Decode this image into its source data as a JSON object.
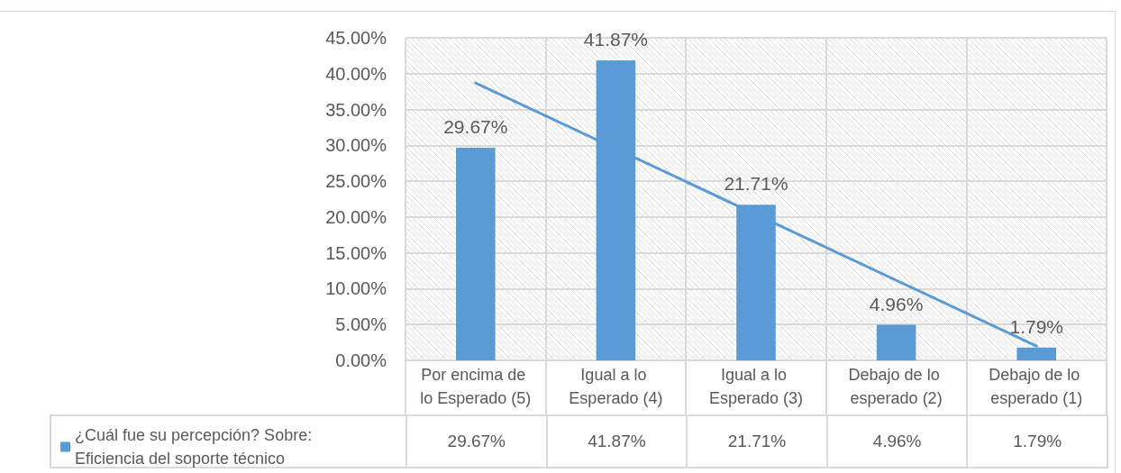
{
  "chart_data": {
    "type": "bar",
    "categories": [
      "Por encima de lo Esperado (5)",
      "Igual a lo Esperado (4)",
      "Igual a lo Esperado (3)",
      "Debajo de lo esperado (2)",
      "Debajo de lo esperado (1)"
    ],
    "series": [
      {
        "name": "¿Cuál fue su percepción? Sobre: Eficiencia del soporte técnico",
        "color": "#5b9bd5",
        "values": [
          29.67,
          41.87,
          21.71,
          4.96,
          1.79
        ],
        "value_labels": [
          "29.67%",
          "41.87%",
          "21.71%",
          "4.96%",
          "1.79%"
        ]
      },
      {
        "type": "line",
        "x": [
          "Por encima de lo Esperado (5)",
          "Debajo de lo esperado (1)"
        ],
        "values": [
          38.7,
          2.0
        ],
        "color": "#5b9bd5",
        "marker": "none"
      }
    ],
    "ylim": [
      0,
      45
    ],
    "yticks": [
      {
        "value": 0,
        "label": "0.00%"
      },
      {
        "value": 5,
        "label": "5.00%"
      },
      {
        "value": 10,
        "label": "10.00%"
      },
      {
        "value": 15,
        "label": "15.00%"
      },
      {
        "value": 20,
        "label": "20.00%"
      },
      {
        "value": 25,
        "label": "25.00%"
      },
      {
        "value": 30,
        "label": "30.00%"
      },
      {
        "value": 35,
        "label": "35.00%"
      },
      {
        "value": 40,
        "label": "40.00%"
      },
      {
        "value": 45,
        "label": "45.00%"
      }
    ],
    "grid": true,
    "legend": "bottom left"
  }
}
